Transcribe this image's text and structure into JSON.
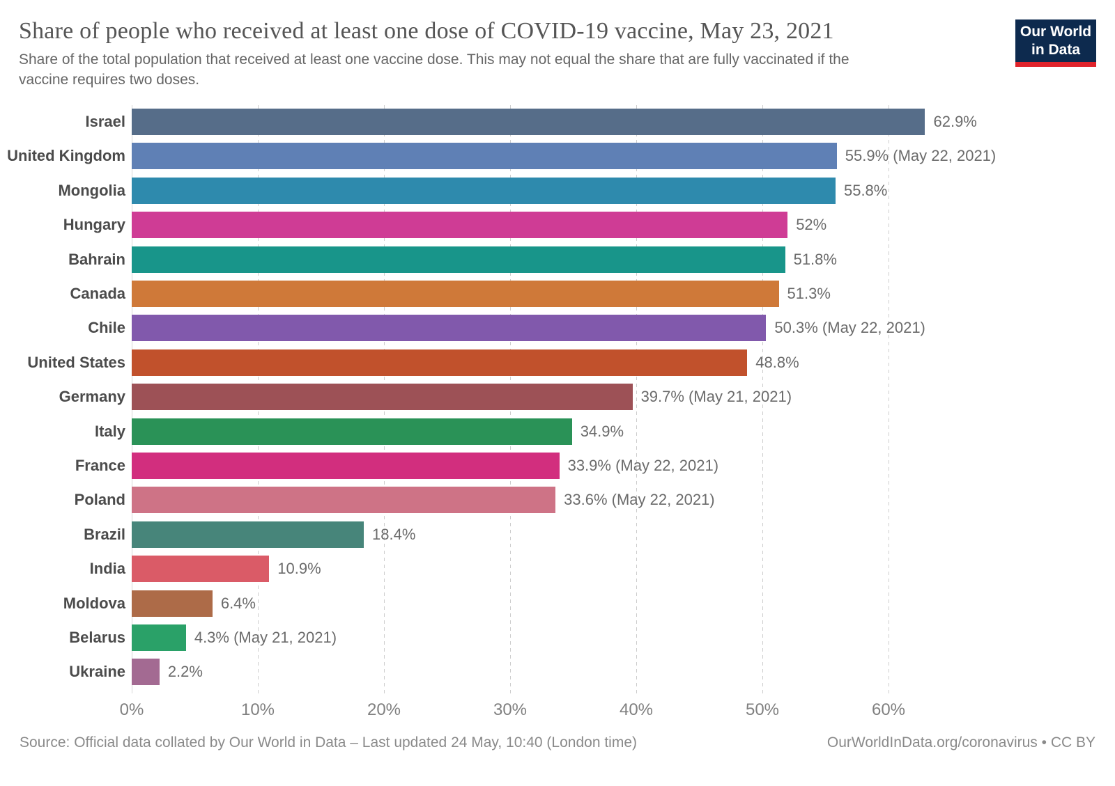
{
  "header": {
    "title": "Share of people who received at least one dose of COVID-19 vaccine, May 23, 2021",
    "subtitle_line1": "Share of the total population that received at least one vaccine dose. This may not equal the share that are fully vaccinated if the",
    "subtitle_line2": "vaccine requires two doses."
  },
  "logo": {
    "line1": "Our World",
    "line2": "in Data",
    "bg_color": "#0d2a4e",
    "strip_color": "#e0232b"
  },
  "chart_data": {
    "type": "bar",
    "orientation": "horizontal",
    "title": "Share of people who received at least one dose of COVID-19 vaccine, May 23, 2021",
    "xlabel": "",
    "ylabel": "",
    "xlim": [
      0,
      63.5
    ],
    "grid": "vertical-dashed",
    "legend": "none",
    "categories": [
      "Israel",
      "United Kingdom",
      "Mongolia",
      "Hungary",
      "Bahrain",
      "Canada",
      "Chile",
      "United States",
      "Germany",
      "Italy",
      "France",
      "Poland",
      "Brazil",
      "India",
      "Moldova",
      "Belarus",
      "Ukraine"
    ],
    "values": [
      62.9,
      55.9,
      55.8,
      52,
      51.8,
      51.3,
      50.3,
      48.8,
      39.7,
      34.9,
      33.9,
      33.6,
      18.4,
      10.9,
      6.4,
      4.3,
      2.2
    ],
    "value_labels": [
      "62.9%",
      "55.9% (May 22, 2021)",
      "55.8%",
      "52%",
      "51.8%",
      "51.3%",
      "50.3% (May 22, 2021)",
      "48.8%",
      "39.7% (May 21, 2021)",
      "34.9%",
      "33.9% (May 22, 2021)",
      "33.6% (May 22, 2021)",
      "18.4%",
      "10.9%",
      "6.4%",
      "4.3% (May 21, 2021)",
      "2.2%"
    ],
    "bar_colors": [
      "#566d89",
      "#5f80b5",
      "#2e8aad",
      "#cf3c95",
      "#18958a",
      "#cf7939",
      "#8159ac",
      "#c1512c",
      "#9d5156",
      "#2a9257",
      "#d22e7e",
      "#ce7386",
      "#47857a",
      "#da5b67",
      "#ad6b48",
      "#2aa168",
      "#a36a92"
    ],
    "x_tick_values": [
      0,
      10,
      20,
      30,
      40,
      50,
      60
    ],
    "x_tick_labels": [
      "0%",
      "10%",
      "20%",
      "30%",
      "40%",
      "50%",
      "60%"
    ]
  },
  "footer": {
    "source": "Source: Official data collated by Our World in Data – Last updated 24 May, 10:40 (London time)",
    "link": "OurWorldInData.org/coronavirus • CC BY"
  }
}
